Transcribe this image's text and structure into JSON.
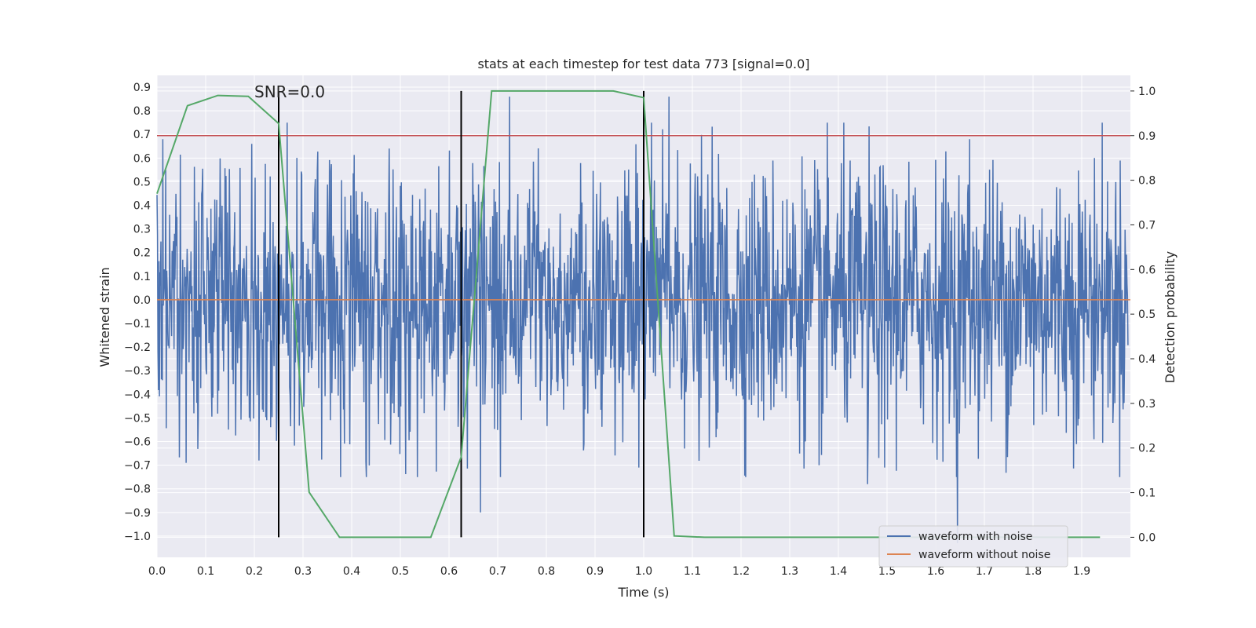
{
  "chart_data": {
    "type": "line",
    "title": "stats at each timestep for test data 773 [signal=0.0]",
    "xlabel": "Time (s)",
    "ylabel_left": "Whitened strain",
    "ylabel_right": "Detection probability",
    "xlim": [
      0.0,
      2.0
    ],
    "ylim_left": [
      -1.09,
      0.95
    ],
    "ylim_right": [
      -0.045,
      1.035
    ],
    "x_ticks": [
      "0.0",
      "0.1",
      "0.2",
      "0.3",
      "0.4",
      "0.5",
      "0.6",
      "0.7",
      "0.8",
      "0.9",
      "1.0",
      "1.1",
      "1.2",
      "1.3",
      "1.4",
      "1.5",
      "1.6",
      "1.7",
      "1.8",
      "1.9"
    ],
    "y_left_ticks": [
      "0.9",
      "0.8",
      "0.7",
      "0.6",
      "0.5",
      "0.4",
      "0.3",
      "0.2",
      "0.1",
      "0.0",
      "−0.1",
      "−0.2",
      "−0.3",
      "−0.4",
      "−0.5",
      "−0.6",
      "−0.7",
      "−0.8",
      "−0.9",
      "−1.0"
    ],
    "y_right_ticks": [
      "1.0",
      "0.9",
      "0.8",
      "0.7",
      "0.6",
      "0.5",
      "0.4",
      "0.3",
      "0.2",
      "0.1",
      "0.0"
    ],
    "grid": true,
    "legend_position": "lower-right",
    "annotation": "SNR=0.0",
    "threshold": 0.9,
    "vertical_lines": [
      0.25,
      0.625,
      1.0
    ],
    "series": [
      {
        "name": "waveform with noise",
        "color": "#4c72b0",
        "axis": "left",
        "description": "noisy whitened strain",
        "amplitude": 0.28,
        "spikes": [
          {
            "x": 0.012,
            "y": 0.68
          },
          {
            "x": 0.06,
            "y": -0.69
          },
          {
            "x": 0.195,
            "y": 0.66
          },
          {
            "x": 0.21,
            "y": -0.68
          },
          {
            "x": 0.25,
            "y": 0.44
          },
          {
            "x": 0.665,
            "y": -0.9
          },
          {
            "x": 0.725,
            "y": 0.86
          },
          {
            "x": 0.99,
            "y": -0.71
          },
          {
            "x": 1.052,
            "y": 0.86
          },
          {
            "x": 1.495,
            "y": 0.81
          },
          {
            "x": 1.495,
            "y": -0.71
          },
          {
            "x": 1.645,
            "y": -1.03
          },
          {
            "x": 1.67,
            "y": 0.68
          },
          {
            "x": 1.46,
            "y": -0.78
          },
          {
            "x": 1.36,
            "y": -0.7
          }
        ]
      },
      {
        "name": "waveform without noise",
        "color": "#dd8452",
        "axis": "left",
        "x": [
          0.0,
          2.0
        ],
        "y": [
          0.0,
          0.0
        ]
      },
      {
        "name": "detection probability",
        "color": "#55a868",
        "axis": "right",
        "x": [
          0.0,
          0.0625,
          0.125,
          0.1875,
          0.25,
          0.3125,
          0.375,
          0.4375,
          0.5,
          0.5625,
          0.625,
          0.6875,
          0.75,
          0.8125,
          0.875,
          0.9375,
          1.0,
          1.0625,
          1.125,
          1.1875,
          1.25,
          1.3125,
          1.375,
          1.4375,
          1.5,
          1.5625,
          1.625,
          1.6875,
          1.75,
          1.8125,
          1.875,
          1.9375
        ],
        "y": [
          0.77,
          0.967,
          0.99,
          0.988,
          0.927,
          0.101,
          0.0,
          0.0,
          0.0,
          0.0,
          0.18,
          1.0,
          1.0,
          1.0,
          1.0,
          1.0,
          0.985,
          0.003,
          0.0,
          0.0,
          0.0,
          0.0,
          0.0,
          0.0,
          0.0,
          0.0,
          0.0,
          0.0,
          0.0,
          0.0,
          0.0,
          0.0
        ]
      }
    ]
  },
  "colors": {
    "plot_background": "#eaeaf2",
    "grid": "#ffffff",
    "threshold_line": "#c44e52",
    "vertical_line": "#000000"
  }
}
